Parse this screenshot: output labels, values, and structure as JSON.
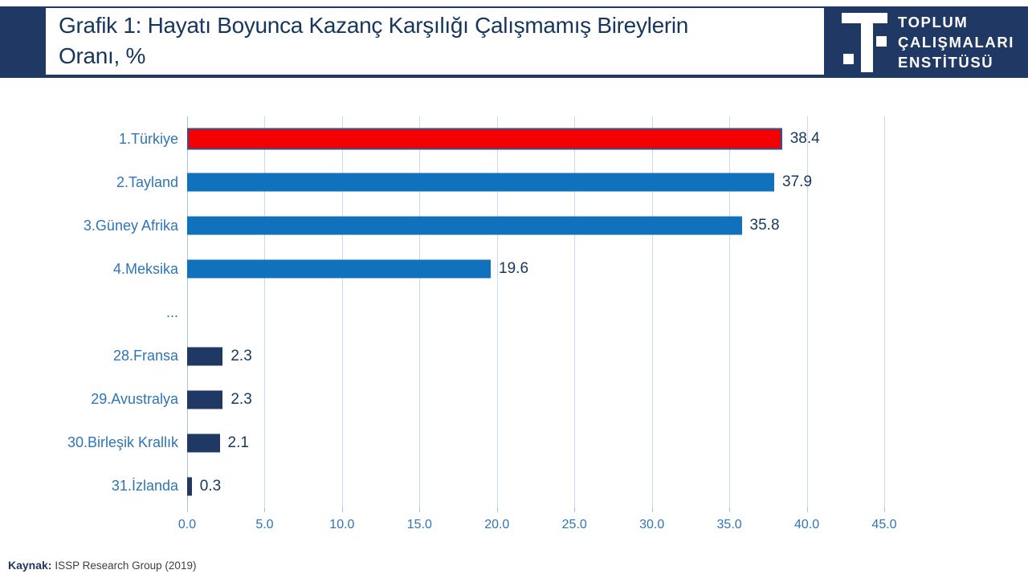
{
  "header": {
    "title_line1": "Grafik 1: Hayatı Boyunca Kazanç Karşılığı Çalışmamış Bireylerin",
    "title_line2": "Oranı, %"
  },
  "logo": {
    "line1": "TOPLUM",
    "line2": "ÇALIŞMALARI",
    "line3": "ENSTİTÜSÜ",
    "icon": "te-monogram-icon"
  },
  "chart_data": {
    "type": "bar",
    "orientation": "horizontal",
    "title": "Grafik 1: Hayatı Boyunca Kazanç Karşılığı Çalışmamış Bireylerin Oranı, %",
    "categories": [
      "1.Türkiye",
      "2.Tayland",
      "3.Güney Afrika",
      "4.Meksika",
      "...",
      "28.Fransa",
      "29.Avustralya",
      "30.Birleşik Krallık",
      "31.İzlanda"
    ],
    "values": [
      38.4,
      37.9,
      35.8,
      19.6,
      null,
      2.3,
      2.3,
      2.1,
      0.3
    ],
    "value_labels": [
      "38.4",
      "37.9",
      "35.8",
      "19.6",
      "",
      "2.3",
      "2.3",
      "2.1",
      "0.3"
    ],
    "bar_colors": [
      "#F40000",
      "#1072BD",
      "#1072BD",
      "#1072BD",
      null,
      "#1F3864",
      "#1F3864",
      "#1F3864",
      "#1F3864"
    ],
    "highlight": {
      "index": 0,
      "border_color": "#2F5496"
    },
    "x_ticks": [
      "0.0",
      "5.0",
      "10.0",
      "15.0",
      "20.0",
      "25.0",
      "30.0",
      "35.0",
      "40.0",
      "45.0"
    ],
    "xlim": [
      0,
      45
    ],
    "grid": "vertical-only",
    "legend": false
  },
  "source": {
    "label": "Kaynak:",
    "text": "ISSP Research Group (2019)"
  },
  "colors": {
    "navy": "#1F3864",
    "red": "#F40000",
    "bar_blue": "#1072BD",
    "bar_navy": "#1F3864",
    "category_label_blue": "#2E75B6",
    "value_navy": "#17375E",
    "gridline": "#C9DAF0",
    "axis": "#A6C3E3",
    "source_text": "#3F3F3F"
  }
}
